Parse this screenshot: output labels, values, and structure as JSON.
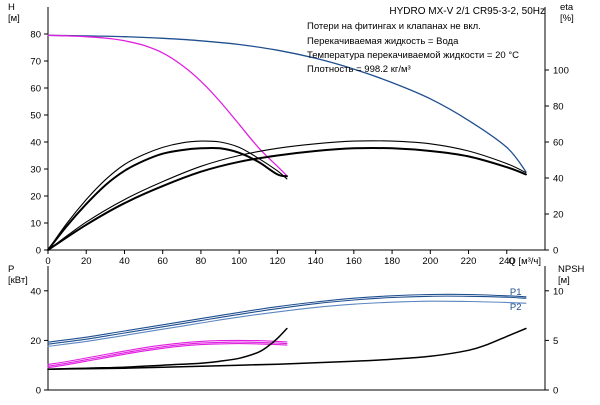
{
  "header": {
    "title": "HYDRO MX-V 2/1 CR95-3-2, 50Hz",
    "notes": [
      "Потери на фитингах и клапанах не вкл.",
      "Перекачиваемая жидкость = Вода",
      "Температура перекачиваемой жидкости = 20 °C",
      "Плотность = 998.2 кг/м³"
    ]
  },
  "colors": {
    "axis": "#000000",
    "head_curve": "#1f4f8f",
    "head_curve_single": "#e020e0",
    "efficiency": "#000000",
    "power_p1": "#1f4f8f",
    "power_p2": "#5c87c0",
    "power_single": "#e020e0",
    "npsh": "#000000"
  },
  "chart_data": [
    {
      "type": "line",
      "name": "head-efficiency",
      "xlabel": "Q [м³/ч]",
      "ylabel_left": "H\n[м]",
      "ylabel_right": "eta\n[%]",
      "xlim": [
        0,
        260
      ],
      "xticks": [
        0,
        20,
        40,
        60,
        80,
        100,
        120,
        140,
        160,
        180,
        200,
        220,
        240
      ],
      "ylim_left": [
        0,
        90
      ],
      "yticks_left": [
        0,
        10,
        20,
        30,
        40,
        50,
        60,
        70,
        80
      ],
      "ylim_right": [
        0,
        135
      ],
      "yticks_right": [
        0,
        20,
        40,
        60,
        80,
        100
      ],
      "series": [
        {
          "color_key": "head_curve",
          "axis": "left",
          "width": 1.3,
          "x": [
            0,
            20,
            40,
            60,
            80,
            100,
            120,
            140,
            160,
            180,
            200,
            220,
            240,
            250
          ],
          "y": [
            79.5,
            79.3,
            79,
            78.4,
            77.5,
            76.1,
            74,
            71,
            67,
            62,
            56,
            48,
            38,
            29
          ]
        },
        {
          "color_key": "head_curve_single",
          "axis": "left",
          "width": 1.3,
          "x": [
            0,
            10,
            20,
            30,
            40,
            50,
            60,
            70,
            80,
            90,
            100,
            110,
            120,
            125
          ],
          "y": [
            79.5,
            79.3,
            79,
            78.5,
            77.5,
            75.8,
            73,
            68.5,
            62.5,
            55,
            46.5,
            38,
            31,
            27.5
          ]
        },
        {
          "color_key": "efficiency",
          "axis": "right",
          "width": 1.1,
          "x": [
            0,
            10,
            20,
            30,
            40,
            50,
            60,
            70,
            80,
            90,
            100,
            110,
            120,
            125
          ],
          "y": [
            0,
            15,
            28,
            39,
            47.5,
            53,
            57,
            59.5,
            60.5,
            60,
            57,
            51,
            44,
            39.5
          ]
        },
        {
          "color_key": "efficiency",
          "axis": "right",
          "width": 2.0,
          "x": [
            0,
            10,
            20,
            30,
            40,
            50,
            60,
            70,
            80,
            90,
            100,
            110,
            120,
            125
          ],
          "y": [
            0,
            13.5,
            25.5,
            36,
            44,
            49.5,
            53.5,
            55.5,
            56.5,
            56.5,
            54,
            49,
            42,
            41
          ]
        },
        {
          "color_key": "efficiency",
          "axis": "right",
          "width": 1.1,
          "x": [
            0,
            20,
            40,
            60,
            80,
            100,
            120,
            140,
            160,
            180,
            200,
            220,
            240,
            250
          ],
          "y": [
            0,
            15.5,
            28,
            38,
            46.5,
            52.5,
            56.5,
            59,
            60.5,
            60.5,
            59,
            55,
            48,
            43
          ]
        },
        {
          "color_key": "efficiency",
          "axis": "right",
          "width": 2.0,
          "x": [
            0,
            20,
            40,
            60,
            80,
            100,
            120,
            140,
            160,
            180,
            200,
            220,
            240,
            250
          ],
          "y": [
            0,
            14,
            26,
            35.5,
            43.5,
            49,
            52.5,
            55,
            56.5,
            56.5,
            55,
            52,
            46,
            42
          ]
        }
      ]
    },
    {
      "type": "line",
      "name": "power-npsh",
      "xlim": [
        0,
        260
      ],
      "ylabel_left": "P\n[кВт]",
      "ylabel_right": "NPSH\n[м]",
      "ylim_left": [
        0,
        50
      ],
      "yticks_left": [
        0,
        20,
        40
      ],
      "ylim_right": [
        0,
        12.5
      ],
      "yticks_right": [
        0,
        5,
        10
      ],
      "series": [
        {
          "name": "P1",
          "color_key": "power_p1",
          "axis": "left",
          "width": 1.1,
          "x": [
            0,
            20,
            40,
            60,
            80,
            100,
            120,
            140,
            160,
            180,
            200,
            220,
            240,
            250
          ],
          "y": [
            18.5,
            20.5,
            23,
            25.5,
            28,
            30.5,
            32.8,
            34.8,
            36.3,
            37.3,
            37.8,
            37.8,
            37.4,
            37
          ]
        },
        {
          "name": "P1",
          "color_key": "power_p1",
          "axis": "left",
          "width": 1.1,
          "x": [
            0,
            20,
            40,
            60,
            80,
            100,
            120,
            140,
            160,
            180,
            200,
            220,
            240,
            250
          ],
          "y": [
            19.3,
            21.3,
            23.8,
            26.3,
            28.8,
            31.3,
            33.6,
            35.5,
            37,
            38,
            38.5,
            38.5,
            38,
            37.6
          ]
        },
        {
          "name": "P2",
          "color_key": "power_p2",
          "axis": "left",
          "width": 1.1,
          "x": [
            0,
            20,
            40,
            60,
            80,
            100,
            120,
            140,
            160,
            180,
            200,
            220,
            240,
            250
          ],
          "y": [
            17.6,
            19.6,
            22,
            24.5,
            27,
            29.4,
            31.5,
            33.3,
            34.6,
            35.4,
            35.8,
            35.7,
            35.3,
            35
          ]
        },
        {
          "color_key": "power_single",
          "axis": "left",
          "width": 1.1,
          "x": [
            0,
            10,
            20,
            30,
            40,
            50,
            60,
            70,
            80,
            90,
            100,
            110,
            120,
            125
          ],
          "y": [
            9,
            10.2,
            11.6,
            13,
            14.4,
            15.7,
            16.8,
            17.7,
            18.3,
            18.6,
            18.7,
            18.6,
            18.3,
            18.1
          ]
        },
        {
          "color_key": "power_single",
          "axis": "left",
          "width": 1.1,
          "x": [
            0,
            10,
            20,
            30,
            40,
            50,
            60,
            70,
            80,
            90,
            100,
            110,
            120,
            125
          ],
          "y": [
            9.6,
            10.8,
            12.2,
            13.6,
            15,
            16.3,
            17.4,
            18.3,
            18.9,
            19.2,
            19.3,
            19.2,
            18.9,
            18.7
          ]
        },
        {
          "color_key": "power_single",
          "axis": "left",
          "width": 1.1,
          "x": [
            0,
            10,
            20,
            30,
            40,
            50,
            60,
            70,
            80,
            90,
            100,
            110,
            120,
            125
          ],
          "y": [
            10.3,
            11.5,
            12.9,
            14.3,
            15.7,
            17,
            18.1,
            19,
            19.6,
            19.9,
            20,
            19.9,
            19.6,
            19.4
          ]
        },
        {
          "color_key": "npsh",
          "axis": "right",
          "width": 1.5,
          "x": [
            0,
            20,
            40,
            60,
            80,
            90,
            100,
            110,
            115,
            120,
            125
          ],
          "y": [
            2.1,
            2.2,
            2.3,
            2.5,
            2.7,
            2.9,
            3.2,
            3.8,
            4.4,
            5.2,
            6.2
          ]
        },
        {
          "color_key": "npsh",
          "axis": "right",
          "width": 1.5,
          "x": [
            0,
            20,
            40,
            60,
            80,
            100,
            120,
            140,
            160,
            180,
            200,
            220,
            230,
            240,
            250
          ],
          "y": [
            2.1,
            2.15,
            2.2,
            2.3,
            2.4,
            2.5,
            2.6,
            2.75,
            2.9,
            3.1,
            3.4,
            4.0,
            4.6,
            5.4,
            6.2
          ]
        }
      ],
      "series_labels": [
        {
          "text": "P1",
          "at_x": 250,
          "at_y": 39.5,
          "color_key": "power_p1"
        },
        {
          "text": "P2",
          "at_x": 250,
          "at_y": 33.5,
          "color_key": "power_p1"
        }
      ]
    }
  ]
}
